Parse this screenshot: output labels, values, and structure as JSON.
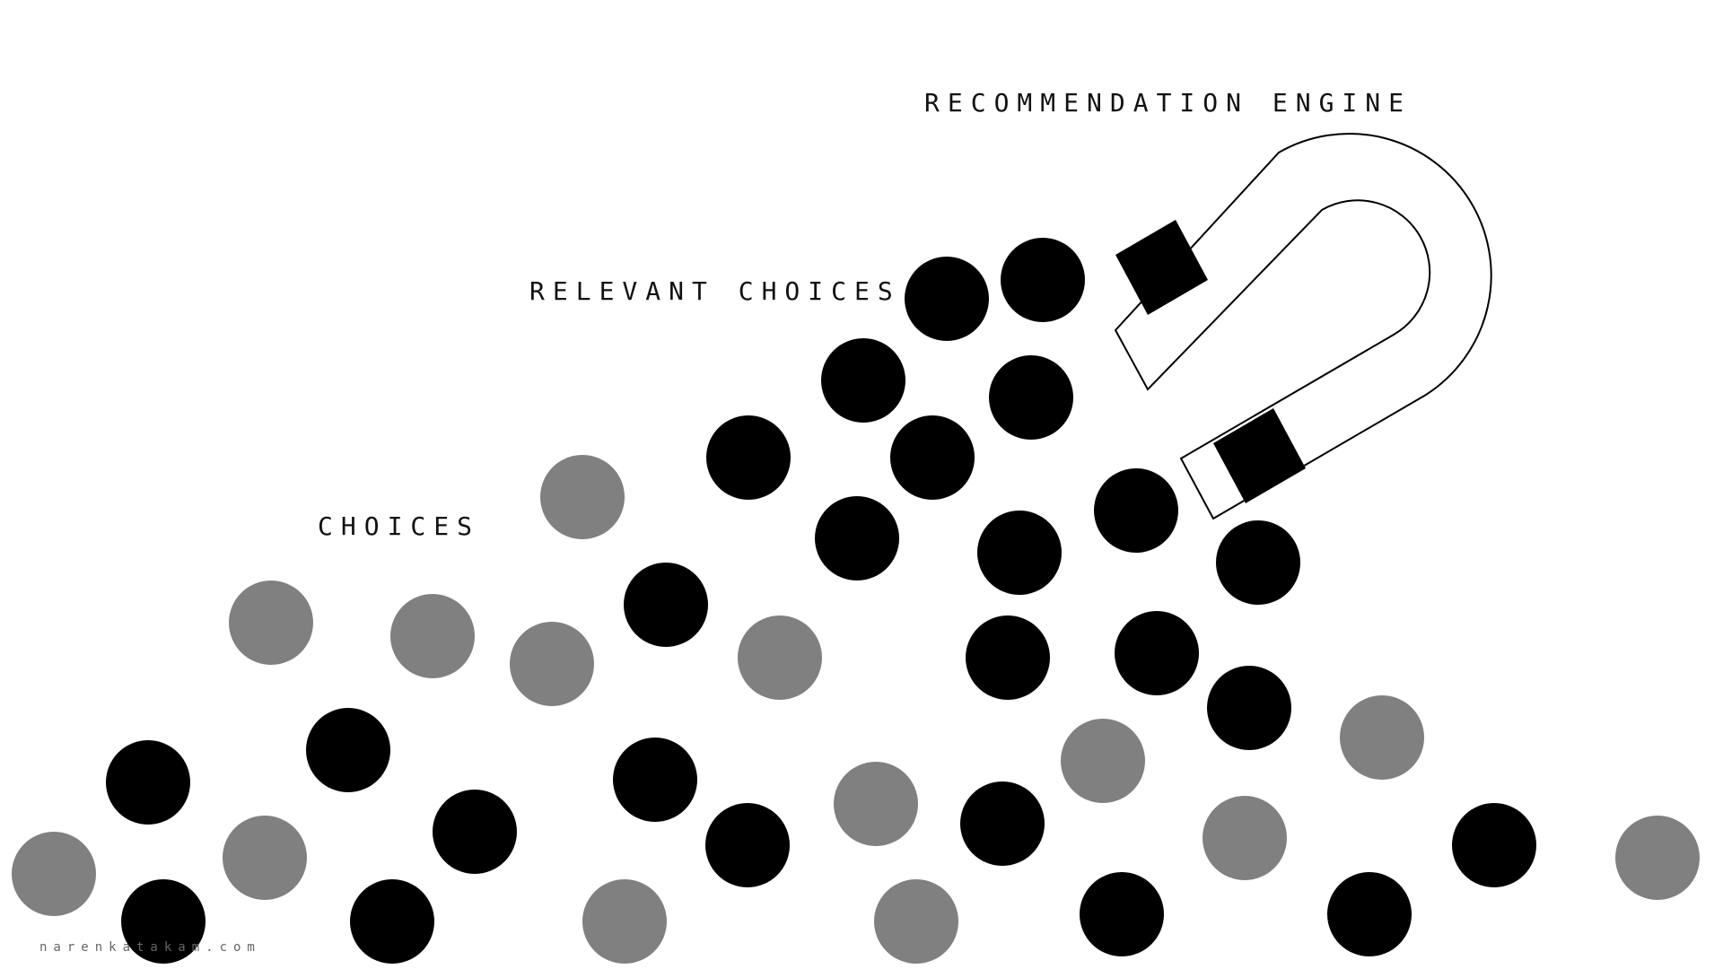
{
  "labels": {
    "choices": "CHOICES",
    "relevant_choices": "RELEVANT CHOICES",
    "engine": "RECOMMENDATION ENGINE"
  },
  "credit": "narenkatakam.com",
  "colors": {
    "background": "#ffffff",
    "relevant_dot": "#000000",
    "other_dot": "#808080",
    "magnet_outline": "#000000",
    "magnet_pole": "#000000",
    "text": "#111111"
  },
  "icon": "magnet-icon",
  "legend": {
    "black_dots": "relevant choices",
    "gray_dots": "choices"
  }
}
